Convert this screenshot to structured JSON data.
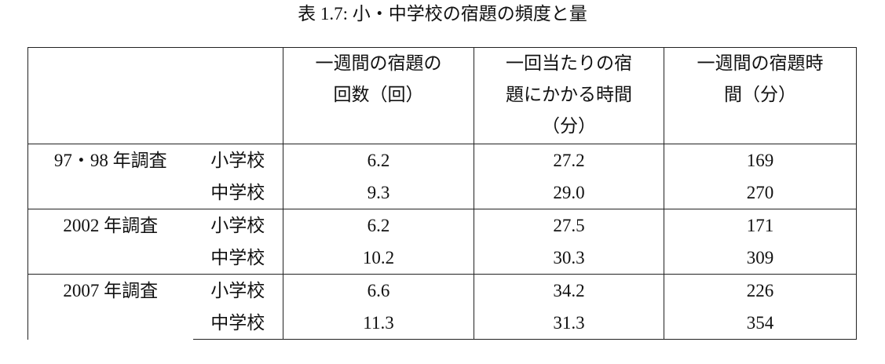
{
  "title": "表 1.7:  小・中学校の宿題の頻度と量",
  "table": {
    "columns": [
      "一週間の宿題の回数（回）",
      "一回当たりの宿題にかかる時間（分）",
      "一週間の宿題時間（分）"
    ],
    "groups": [
      {
        "label": "97・98 年調査",
        "rows": [
          {
            "school": "小学校",
            "values": [
              "6.2",
              "27.2",
              "169"
            ]
          },
          {
            "school": "中学校",
            "values": [
              "9.3",
              "29.0",
              "270"
            ]
          }
        ]
      },
      {
        "label": "2002 年調査",
        "rows": [
          {
            "school": "小学校",
            "values": [
              "6.2",
              "27.5",
              "171"
            ]
          },
          {
            "school": "中学校",
            "values": [
              "10.2",
              "30.3",
              "309"
            ]
          }
        ]
      },
      {
        "label": "2007 年調査",
        "rows": [
          {
            "school": "小学校",
            "values": [
              "6.6",
              "34.2",
              "226"
            ]
          },
          {
            "school": "中学校",
            "values": [
              "11.3",
              "31.3",
              "354"
            ]
          }
        ]
      }
    ]
  }
}
